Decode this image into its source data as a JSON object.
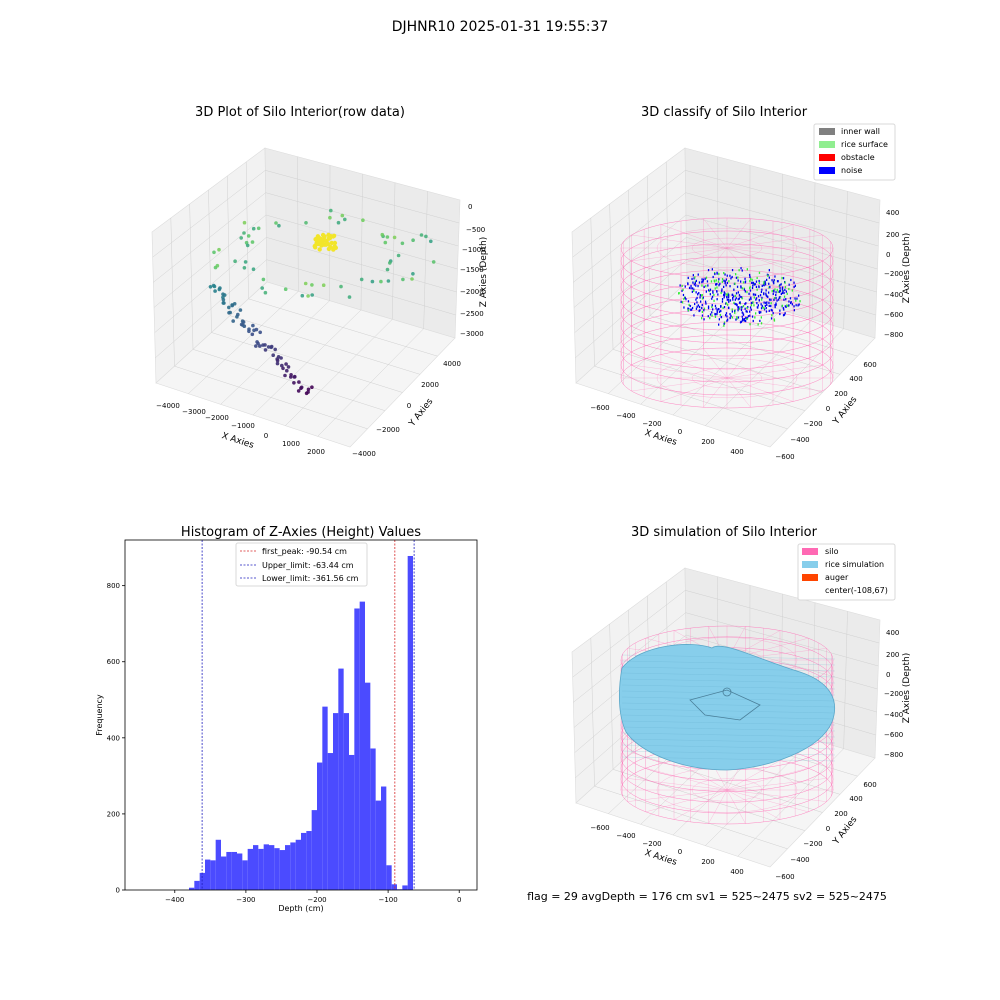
{
  "figure": {
    "suptitle": "DJHNR10 2025-01-31 19:55:37",
    "status_line": "flag = 29  avgDepth = 176 cm  sv1 = 525~2475  sv2 = 525~2475"
  },
  "colors": {
    "histogram_bar": "#4b4bff",
    "first_peak": "#d62728",
    "limit": "#1f1fbf",
    "silo": "#ff69b4",
    "rice_simulation": "#87ceeb",
    "auger": "#ff4500",
    "inner_wall": "#808080",
    "rice_surface": "#90ee90",
    "obstacle": "#ff0000",
    "noise": "#0000ff"
  },
  "chart_data": [
    {
      "type": "scatter",
      "title": "3D Plot of Silo Interior(row data)",
      "xlabel": "X Axies",
      "ylabel": "Y Axies",
      "zlabel": "Z Axies (Depth)",
      "xticks": [
        "−4000",
        "−3000",
        "−2000",
        "−1000",
        "0",
        "1000",
        "2000"
      ],
      "yticks": [
        "−4000",
        "−2000",
        "0",
        "2000",
        "4000"
      ],
      "zticks": [
        "0",
        "−500",
        "−1000",
        "−1500",
        "−2000",
        "−2500",
        "−3000"
      ],
      "xlim": [
        -4500,
        2500
      ],
      "ylim": [
        -4500,
        4500
      ],
      "zlim": [
        -3200,
        100
      ]
    },
    {
      "type": "scatter",
      "title": "3D classify of Silo Interior",
      "xlabel": "X Axies",
      "ylabel": "Y Axies",
      "zlabel": "Z Axies (Depth)",
      "xticks": [
        "−600",
        "−400",
        "−200",
        "0",
        "200",
        "400"
      ],
      "yticks": [
        "−600",
        "−400",
        "−200",
        "0",
        "200",
        "400",
        "600"
      ],
      "zticks": [
        "400",
        "200",
        "0",
        "−200",
        "−400",
        "−600",
        "−800"
      ],
      "legend": [
        "inner wall",
        "rice surface",
        "obstacle",
        "noise"
      ],
      "legend_placement": "top-right"
    },
    {
      "type": "bar",
      "title": "Histogram of Z-Axies (Height) Values",
      "xlabel": "Depth (cm)",
      "ylabel": "Frequency",
      "xlim": [
        -470,
        25
      ],
      "ylim": [
        0,
        920
      ],
      "xticks": [
        "−400",
        "−300",
        "−200",
        "−100",
        "0"
      ],
      "yticks": [
        "0",
        "200",
        "400",
        "600",
        "800"
      ],
      "bin_start": -380,
      "bin_width": 7.5,
      "values": [
        6,
        24,
        45,
        80,
        78,
        132,
        88,
        100,
        100,
        96,
        78,
        108,
        118,
        108,
        120,
        118,
        110,
        105,
        118,
        125,
        132,
        150,
        155,
        210,
        335,
        482,
        360,
        465,
        582,
        465,
        355,
        740,
        758,
        545,
        372,
        235,
        272,
        65,
        15,
        2,
        12,
        878
      ],
      "lines": [
        {
          "label": "first_peak: -90.54 cm",
          "x": -90.54,
          "style": "first_peak"
        },
        {
          "label": "Upper_limit: -63.44 cm",
          "x": -63.44,
          "style": "limit"
        },
        {
          "label": "Lower_limit: -361.56 cm",
          "x": -361.56,
          "style": "limit"
        }
      ],
      "legend_placement": "upper-center"
    },
    {
      "type": "area",
      "title": "3D simulation of Silo Interior",
      "xlabel": "X Axies",
      "ylabel": "Y Axies",
      "zlabel": "Z Axies (Depth)",
      "xticks": [
        "−600",
        "−400",
        "−200",
        "0",
        "200",
        "400"
      ],
      "yticks": [
        "−600",
        "−400",
        "−200",
        "0",
        "200",
        "400",
        "600"
      ],
      "zticks": [
        "400",
        "200",
        "0",
        "−200",
        "−400",
        "−600",
        "−800"
      ],
      "legend": [
        "silo",
        "rice simulation",
        "auger",
        "center(-108,67)"
      ],
      "legend_placement": "top-right"
    }
  ]
}
